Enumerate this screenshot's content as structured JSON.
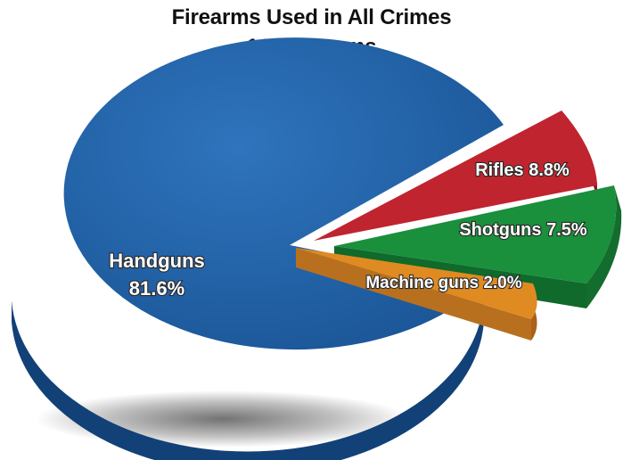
{
  "chart_data": {
    "type": "pie",
    "title": "Firearms Used in All Crimes",
    "subtitle": "147 Firearms",
    "slices": [
      {
        "label": "Handguns",
        "value": 81.6,
        "display": "81.6%",
        "color": "#1d5fa6"
      },
      {
        "label": "Rifles",
        "value": 8.8,
        "display": "8.8%",
        "color": "#c0242e"
      },
      {
        "label": "Shotguns",
        "value": 7.5,
        "display": "7.5%",
        "color": "#1a8f3c"
      },
      {
        "label": "Machine guns",
        "value": 2.0,
        "display": "2.0%",
        "color": "#e08a22"
      }
    ],
    "labels": {
      "handguns_name": "Handguns",
      "handguns_value": "81.6%",
      "rifles": "Rifles 8.8%",
      "shotguns": "Shotguns 7.5%",
      "machine_guns": "Machine guns 2.0%"
    }
  }
}
